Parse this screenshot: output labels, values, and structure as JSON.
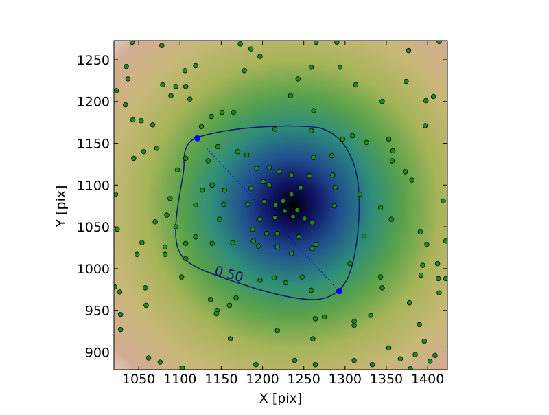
{
  "chart_data": {
    "type": "scatter",
    "xlabel": "X [pix]",
    "ylabel": "Y [pix]",
    "xlim": [
      1020,
      1424
    ],
    "ylim": [
      879,
      1273
    ],
    "xticks": [
      1050,
      1100,
      1150,
      1200,
      1250,
      1300,
      1350,
      1400
    ],
    "yticks": [
      900,
      950,
      1000,
      1050,
      1100,
      1150,
      1200,
      1250
    ],
    "contour_label": "0.50",
    "color": "#1f8c1f",
    "marker_color": "#0000ee",
    "markers": {
      "x": [
        1121,
        1293
      ],
      "y": [
        1156,
        973
      ]
    },
    "x": [
      1042,
      1078,
      1173,
      1186,
      1197,
      1265,
      1290,
      1377,
      1414,
      1035,
      1119,
      1106,
      1178,
      1037,
      1259,
      1294,
      1243,
      1023,
      1079,
      1095,
      1107,
      1089,
      1234,
      1313,
      1374,
      1407,
      1398,
      1345,
      1034,
      1112,
      1151,
      1165,
      1138,
      1262,
      1043,
      1053,
      1067,
      1397,
      1126,
      1215,
      1259,
      1309,
      1297,
      1326,
      1353,
      1072,
      1056,
      1044,
      1146,
      1170,
      1181,
      1107,
      1134,
      1262,
      1284,
      1358,
      1357,
      1220,
      1208,
      1193,
      1257,
      1235,
      1285,
      1097,
      1373,
      1381,
      1201,
      1208,
      1186,
      1127,
      1139,
      1154,
      1246,
      1288,
      1318,
      1235,
      1088,
      1225,
      1202,
      1153,
      1182,
      1216,
      1287,
      1227,
      1242,
      1419,
      1343,
      1119,
      1022,
      1084,
      1215,
      1237,
      1251,
      1070,
      1148,
      1197,
      1260,
      1356,
      1024,
      1095,
      1218,
      1205,
      1188,
      1119,
      1244,
      1323,
      1391,
      1054,
      1164,
      1189,
      1195,
      1218,
      1265,
      1399,
      1422,
      1107,
      1139,
      1082,
      1260,
      1235,
      1048,
      1082,
      1107,
      1412,
      1394,
      1306,
      1343,
      1392,
      1413,
      1422,
      1102,
      1214,
      1197,
      1248,
      1228,
      1021,
      1027,
      1058,
      1345,
      1414,
      1259,
      1137,
      1168,
      1160,
      1378,
      1059,
      1145,
      1144,
      1331,
      1264,
      1275,
      1311,
      1311,
      1028,
      1390,
      1028,
      1218,
      1161,
      1261,
      1353,
      1396,
      1062,
      1076,
      1192,
      1239,
      1264,
      1311,
      1333,
      1367,
      1385,
      1409,
      1403,
      1103,
      1379
    ],
    "y": [
      1271,
      1267,
      1269,
      1263,
      1254,
      1271,
      1271,
      1261,
      1272,
      1242,
      1243,
      1237,
      1237,
      1227,
      1241,
      1241,
      1227,
      1213,
      1220,
      1218,
      1218,
      1207,
      1207,
      1220,
      1224,
      1206,
      1201,
      1200,
      1196,
      1203,
      1187,
      1187,
      1182,
      1189,
      1178,
      1177,
      1172,
      1171,
      1170,
      1167,
      1165,
      1159,
      1155,
      1151,
      1155,
      1144,
      1140,
      1132,
      1146,
      1140,
      1136,
      1132,
      1129,
      1133,
      1135,
      1141,
      1129,
      1116,
      1121,
      1120,
      1111,
      1112,
      1112,
      1118,
      1116,
      1106,
      1104,
      1100,
      1096,
      1094,
      1100,
      1094,
      1097,
      1097,
      1089,
      1089,
      1084,
      1081,
      1080,
      1077,
      1077,
      1076,
      1075,
      1069,
      1070,
      1081,
      1073,
      1076,
      1089,
      1064,
      1061,
      1062,
      1060,
      1056,
      1059,
      1059,
      1055,
      1059,
      1047,
      1050,
      1042,
      1042,
      1047,
      1038,
      1038,
      1039,
      1044,
      1031,
      1031,
      1033,
      1027,
      1026,
      1029,
      1029,
      1033,
      1030,
      1030,
      1026,
      1024,
      1018,
      1017,
      1017,
      1012,
      1006,
      1004,
      1006,
      990,
      992,
      988,
      988,
      990,
      989,
      986,
      990,
      983,
      978,
      972,
      977,
      977,
      971,
      974,
      963,
      965,
      956,
      959,
      956,
      950,
      946,
      944,
      940,
      942,
      937,
      932,
      945,
      933,
      927,
      926,
      916,
      916,
      905,
      913,
      893,
      888,
      885,
      890,
      885,
      890,
      885,
      892,
      897,
      896,
      889,
      881,
      880
    ]
  }
}
